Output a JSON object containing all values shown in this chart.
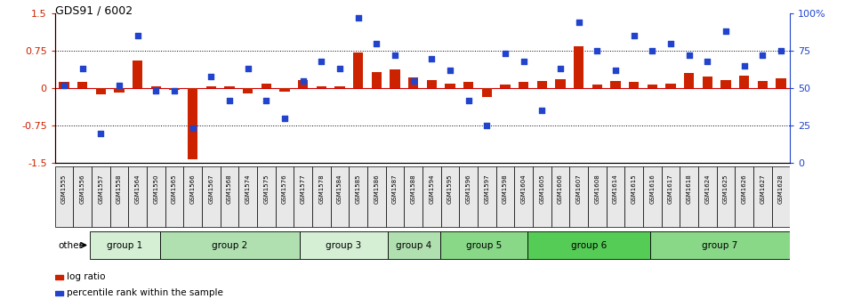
{
  "title": "GDS91 / 6002",
  "samples": [
    "GSM1555",
    "GSM1556",
    "GSM1557",
    "GSM1558",
    "GSM1564",
    "GSM1550",
    "GSM1565",
    "GSM1566",
    "GSM1567",
    "GSM1568",
    "GSM1574",
    "GSM1575",
    "GSM1576",
    "GSM1577",
    "GSM1578",
    "GSM1584",
    "GSM1585",
    "GSM1586",
    "GSM1587",
    "GSM1588",
    "GSM1594",
    "GSM1595",
    "GSM1596",
    "GSM1597",
    "GSM1598",
    "GSM1604",
    "GSM1605",
    "GSM1606",
    "GSM1607",
    "GSM1608",
    "GSM1614",
    "GSM1615",
    "GSM1616",
    "GSM1617",
    "GSM1618",
    "GSM1624",
    "GSM1625",
    "GSM1626",
    "GSM1627",
    "GSM1628"
  ],
  "log_ratio": [
    0.13,
    0.13,
    -0.12,
    -0.08,
    0.55,
    0.04,
    -0.04,
    -1.42,
    0.04,
    0.03,
    -0.1,
    0.1,
    -0.07,
    0.16,
    0.03,
    0.04,
    0.72,
    0.33,
    0.38,
    0.22,
    0.16,
    0.1,
    0.13,
    -0.18,
    0.08,
    0.13,
    0.15,
    0.18,
    0.85,
    0.07,
    0.15,
    0.13,
    0.07,
    0.1,
    0.3,
    0.24,
    0.17,
    0.26,
    0.15,
    0.19
  ],
  "percentile": [
    52,
    63,
    20,
    52,
    85,
    48,
    48,
    23,
    58,
    42,
    63,
    42,
    30,
    55,
    68,
    63,
    97,
    80,
    72,
    55,
    70,
    62,
    42,
    25,
    73,
    68,
    35,
    63,
    94,
    75,
    62,
    85,
    75,
    80,
    72,
    68,
    88,
    65,
    72,
    75
  ],
  "groups": [
    {
      "name": "group 1",
      "start": 0,
      "end": 4,
      "color": "#d4efd4"
    },
    {
      "name": "group 2",
      "start": 4,
      "end": 12,
      "color": "#b0e0b0"
    },
    {
      "name": "group 3",
      "start": 12,
      "end": 17,
      "color": "#d4efd4"
    },
    {
      "name": "group 4",
      "start": 17,
      "end": 20,
      "color": "#b0e0b0"
    },
    {
      "name": "group 5",
      "start": 20,
      "end": 25,
      "color": "#88d888"
    },
    {
      "name": "group 6",
      "start": 25,
      "end": 32,
      "color": "#55cc55"
    },
    {
      "name": "group 7",
      "start": 32,
      "end": 40,
      "color": "#88d888"
    }
  ],
  "bar_color": "#cc2200",
  "dot_color": "#2244cc",
  "ylim": [
    -1.5,
    1.5
  ],
  "y2lim": [
    0,
    100
  ],
  "yticks_left": [
    -1.5,
    -0.75,
    0,
    0.75,
    1.5
  ],
  "yticks_right": [
    0,
    25,
    50,
    75,
    100
  ],
  "dotted_lines": [
    -0.75,
    0.75
  ],
  "zero_line_color": "#cc0000",
  "title_fontsize": 9,
  "legend_items": [
    "log ratio",
    "percentile rank within the sample"
  ]
}
